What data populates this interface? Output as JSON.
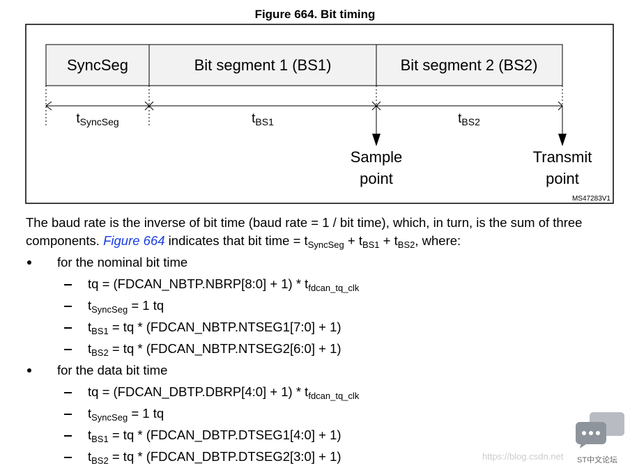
{
  "figure": {
    "title": "Figure 664. Bit timing",
    "segments": [
      "SyncSeg",
      "Bit segment 1 (BS1)",
      "Bit segment 2 (BS2)"
    ],
    "durations": [
      {
        "symbol": "t",
        "subscript": "SyncSeg"
      },
      {
        "symbol": "t",
        "subscript": "BS1"
      },
      {
        "symbol": "t",
        "subscript": "BS2"
      }
    ],
    "markers": [
      [
        "Sample",
        "point"
      ],
      [
        "Transmit",
        "point"
      ]
    ],
    "id": "MS47283V1"
  },
  "paragraph": [
    "The baud rate is the inverse of bit time (baud rate = 1 / bit time), which, in turn, is the sum of three components. ",
    {
      "link": "Figure 664"
    },
    " indicates that bit time = t",
    {
      "sub": "SyncSeg"
    },
    " + t",
    {
      "sub": "BS1"
    },
    " + t",
    {
      "sub": "BS2"
    },
    ", where:"
  ],
  "lists": [
    {
      "text": "for the nominal bit time",
      "items": [
        [
          "tq = (FDCAN_NBTP.NBRP[8:0] + 1) * t",
          {
            "sub": "fdcan_tq_clk"
          }
        ],
        [
          "t",
          {
            "sub": "SyncSeg"
          },
          " = 1 tq"
        ],
        [
          "t",
          {
            "sub": "BS1"
          },
          " = tq * (FDCAN_NBTP.NTSEG1[7:0] + 1)"
        ],
        [
          "t",
          {
            "sub": "BS2"
          },
          " = tq * (FDCAN_NBTP.NTSEG2[6:0] + 1)"
        ]
      ]
    },
    {
      "text": "for the data bit time",
      "items": [
        [
          "tq = (FDCAN_DBTP.DBRP[4:0] + 1) * t",
          {
            "sub": "fdcan_tq_clk"
          }
        ],
        [
          "t",
          {
            "sub": "SyncSeg"
          },
          " = 1 tq"
        ],
        [
          "t",
          {
            "sub": "BS1"
          },
          " = tq * (FDCAN_DBTP.DTSEG1[4:0] + 1)"
        ],
        [
          "t",
          {
            "sub": "BS2"
          },
          " = tq * (FDCAN_DBTP.DTSEG2[3:0] + 1)"
        ]
      ]
    }
  ],
  "watermark": {
    "url": "https://blog.csdn.net",
    "forum": "ST中文论坛"
  }
}
